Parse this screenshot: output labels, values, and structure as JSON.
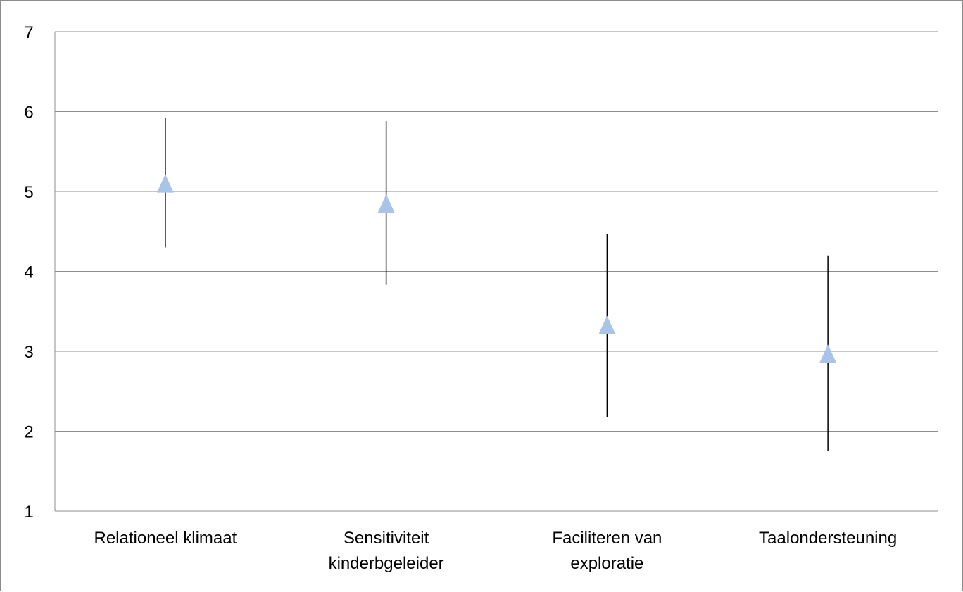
{
  "chart_data": {
    "type": "scatter",
    "title": "",
    "xlabel": "",
    "ylabel": "",
    "ylim": [
      1,
      7
    ],
    "yticks": [
      1,
      2,
      3,
      4,
      5,
      6,
      7
    ],
    "grid": true,
    "legend": "none",
    "categories": [
      [
        "Relationeel klimaat"
      ],
      [
        "Sensitiviteit",
        "kinderbgeleider"
      ],
      [
        "Faciliteren van",
        "exploratie"
      ],
      [
        "Taalondersteuning"
      ]
    ],
    "series": [
      {
        "marker": "triangle",
        "color": "#a9c4e6",
        "values": [
          5.1,
          4.85,
          3.33,
          2.97
        ],
        "error_low": [
          4.3,
          3.83,
          2.18,
          1.75
        ],
        "error_high": [
          5.92,
          5.88,
          4.47,
          4.2
        ]
      }
    ],
    "colors": {
      "grid": "#8c8c8c",
      "error_bar": "#000000",
      "marker": "#a9c4e6"
    }
  }
}
